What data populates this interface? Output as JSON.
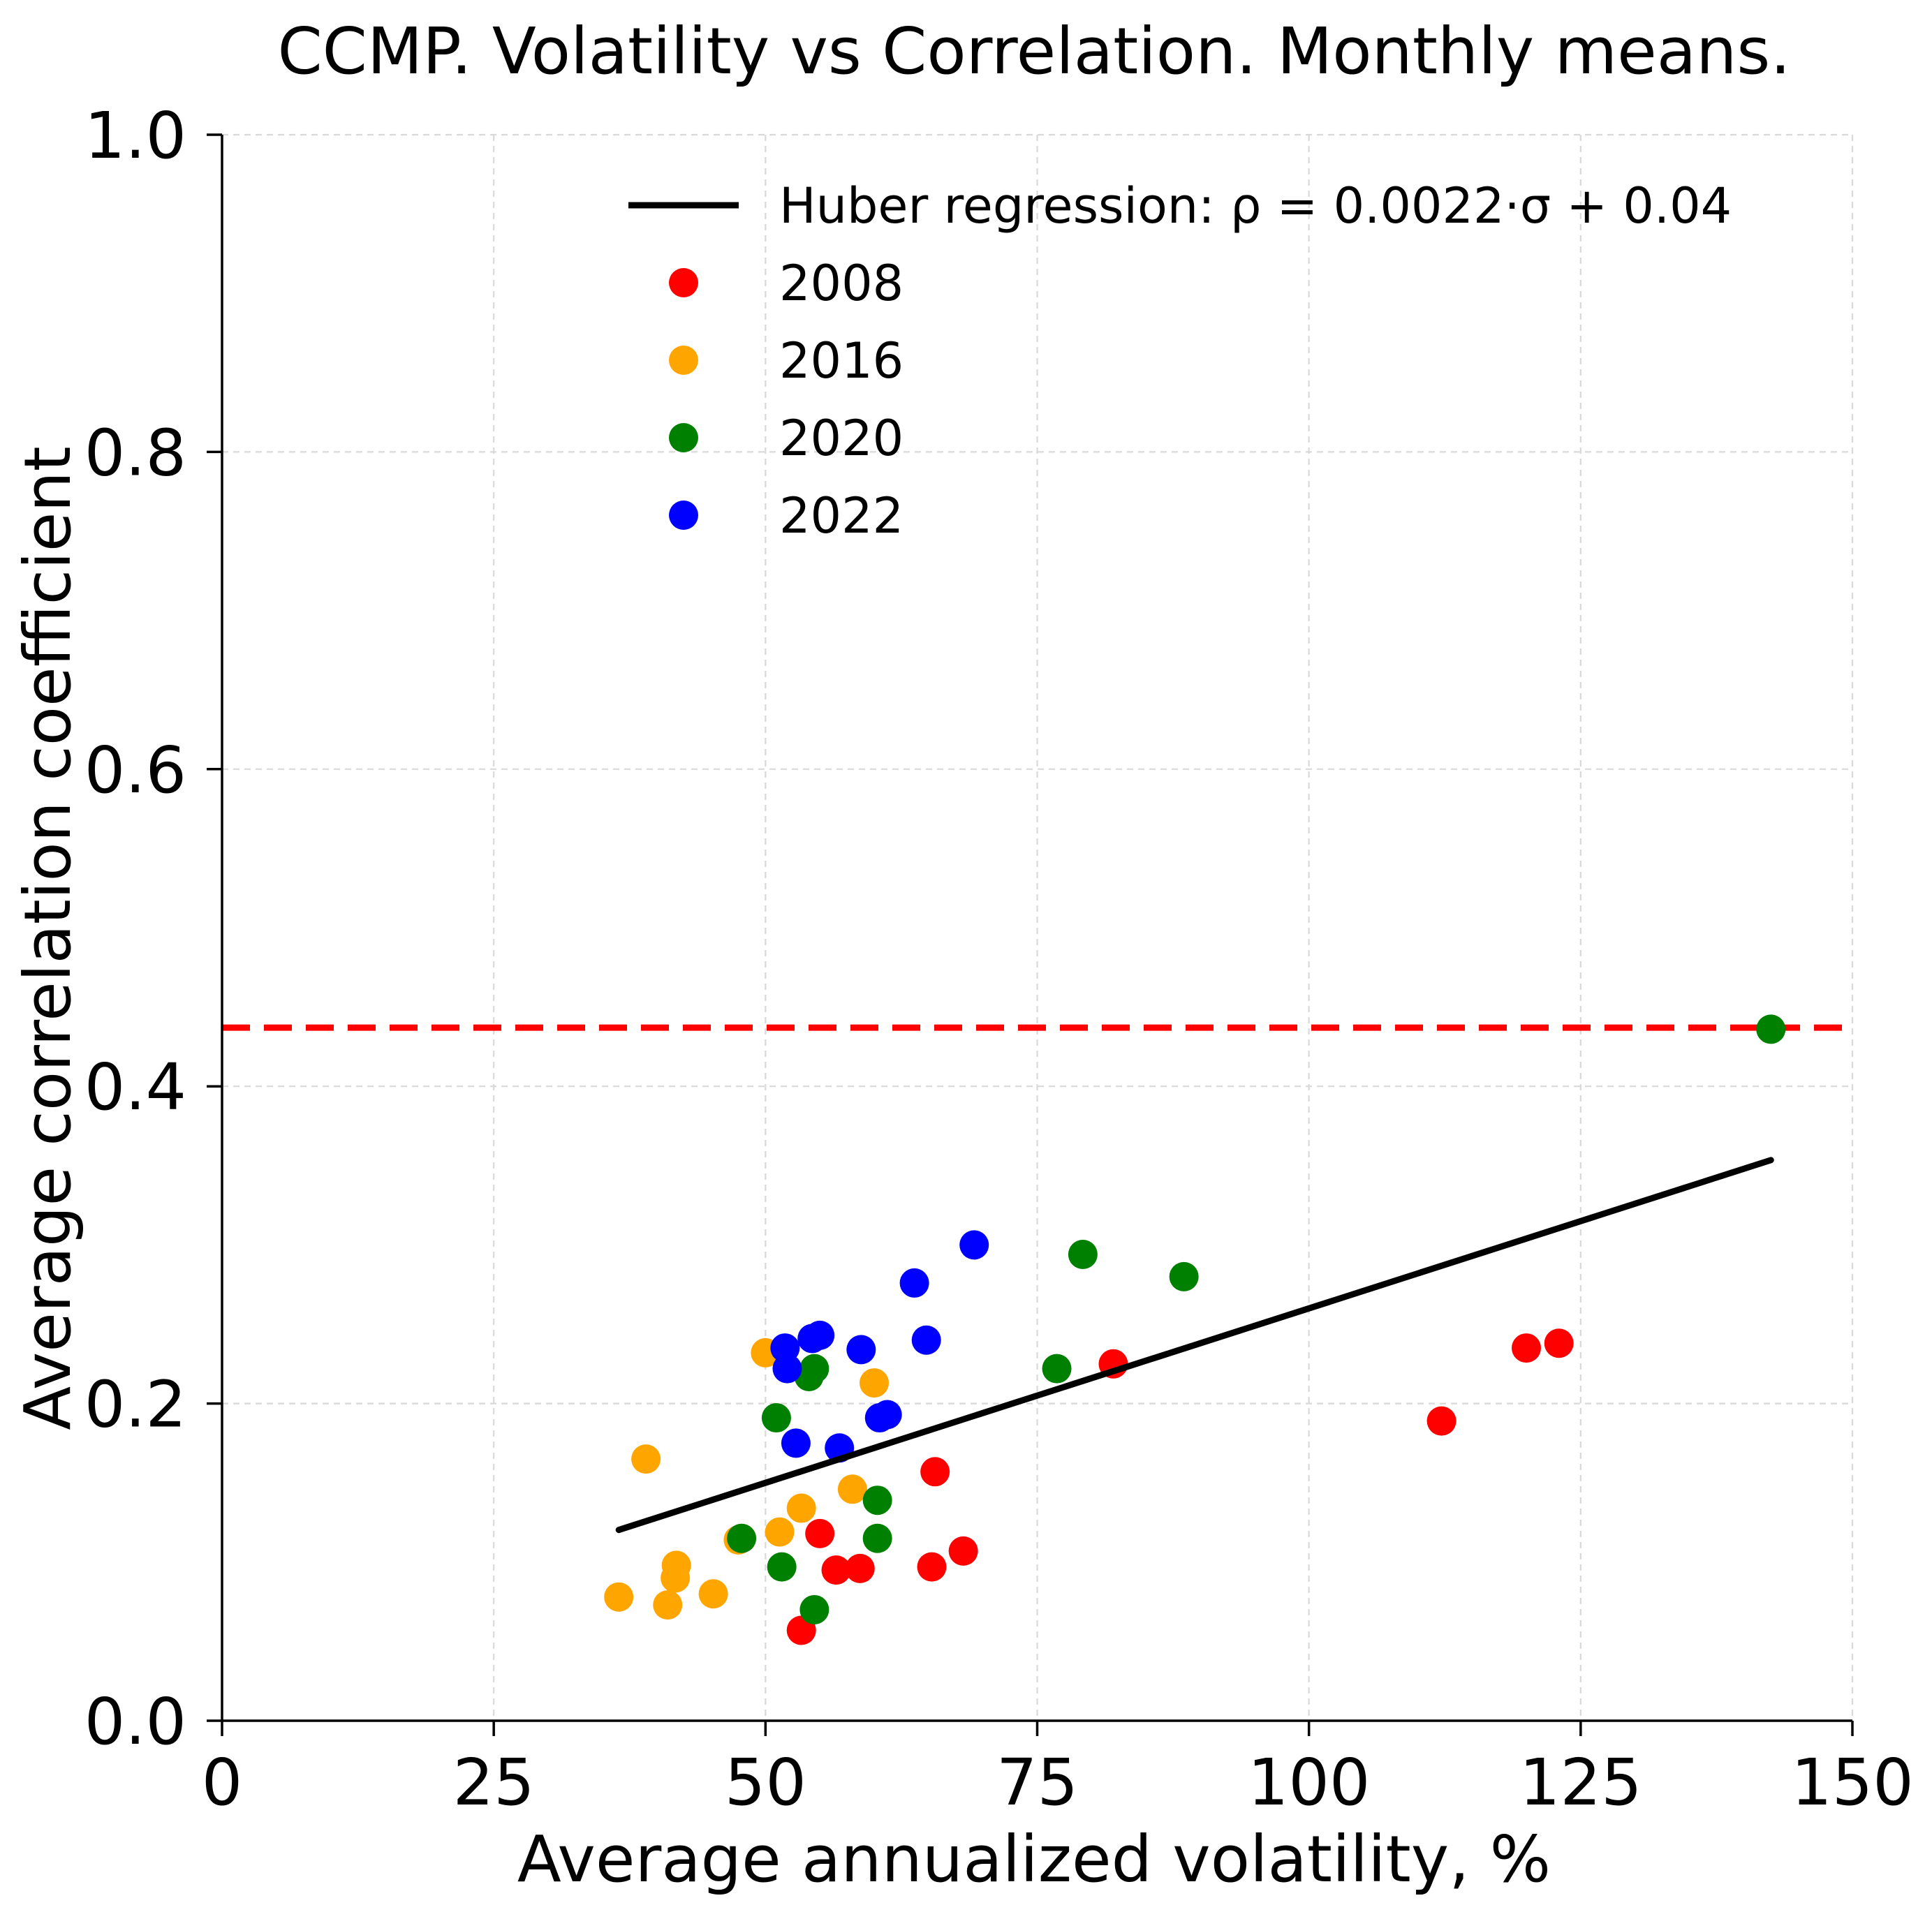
{
  "chart_data": {
    "type": "scatter",
    "title": "CCMP. Volatility vs Correlation. Monthly means.",
    "xlabel": "Average annualized volatility, %",
    "ylabel": "Average correlation coefficient",
    "xlim": [
      0,
      150
    ],
    "ylim": [
      0.0,
      1.0
    ],
    "xticks": [
      0,
      25,
      50,
      75,
      100,
      125,
      150
    ],
    "xtick_labels": [
      "0",
      "25",
      "50",
      "75",
      "100",
      "125",
      "150"
    ],
    "yticks": [
      0.0,
      0.2,
      0.4,
      0.6,
      0.8,
      1.0
    ],
    "ytick_labels": [
      "0.0",
      "0.2",
      "0.4",
      "0.6",
      "0.8",
      "1.0"
    ],
    "grid": true,
    "legend_position": "top-right",
    "reference_line": {
      "y": 0.437,
      "color": "#ff0000",
      "style": "dashed"
    },
    "regression": {
      "label": "Huber regression: ρ = 0.0022·σ + 0.04",
      "slope": 0.0022,
      "intercept": 0.04,
      "x_start": 36.5,
      "x_end": 142.5,
      "color": "#000000"
    },
    "series": [
      {
        "name": "2008",
        "color": "#ff0000",
        "points": [
          [
            53.3,
            0.057
          ],
          [
            55.0,
            0.118
          ],
          [
            56.5,
            0.095
          ],
          [
            58.7,
            0.096
          ],
          [
            65.3,
            0.097
          ],
          [
            65.6,
            0.157
          ],
          [
            68.2,
            0.107
          ],
          [
            82.0,
            0.225
          ],
          [
            112.2,
            0.189
          ],
          [
            120.0,
            0.235
          ],
          [
            123.0,
            0.238
          ]
        ]
      },
      {
        "name": "2016",
        "color": "#ffa500",
        "points": [
          [
            36.5,
            0.078
          ],
          [
            39.0,
            0.165
          ],
          [
            41.0,
            0.073
          ],
          [
            41.7,
            0.09
          ],
          [
            41.8,
            0.098
          ],
          [
            45.2,
            0.08
          ],
          [
            47.5,
            0.114
          ],
          [
            50.0,
            0.232
          ],
          [
            51.3,
            0.119
          ],
          [
            53.3,
            0.134
          ],
          [
            58.0,
            0.146
          ],
          [
            60.0,
            0.213
          ]
        ]
      },
      {
        "name": "2020",
        "color": "#008000",
        "points": [
          [
            47.8,
            0.115
          ],
          [
            51.0,
            0.191
          ],
          [
            51.5,
            0.097
          ],
          [
            54.0,
            0.217
          ],
          [
            54.5,
            0.222
          ],
          [
            54.5,
            0.07
          ],
          [
            60.3,
            0.139
          ],
          [
            60.3,
            0.115
          ],
          [
            76.8,
            0.222
          ],
          [
            79.2,
            0.294
          ],
          [
            88.5,
            0.28
          ],
          [
            142.5,
            0.436
          ]
        ]
      },
      {
        "name": "2022",
        "color": "#0000ff",
        "points": [
          [
            51.8,
            0.235
          ],
          [
            52.0,
            0.222
          ],
          [
            52.8,
            0.175
          ],
          [
            54.3,
            0.241
          ],
          [
            55.0,
            0.243
          ],
          [
            56.8,
            0.172
          ],
          [
            58.8,
            0.234
          ],
          [
            60.5,
            0.191
          ],
          [
            61.2,
            0.193
          ],
          [
            63.7,
            0.276
          ],
          [
            64.8,
            0.24
          ],
          [
            69.2,
            0.3
          ]
        ]
      }
    ]
  }
}
